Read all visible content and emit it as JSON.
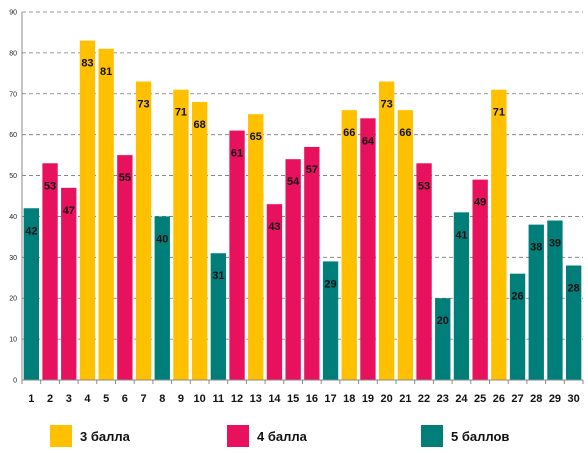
{
  "chart_data": {
    "type": "bar",
    "categories": [
      "1",
      "2",
      "3",
      "4",
      "5",
      "6",
      "7",
      "8",
      "9",
      "10",
      "11",
      "12",
      "13",
      "14",
      "15",
      "16",
      "17",
      "18",
      "19",
      "20",
      "21",
      "22",
      "23",
      "24",
      "25",
      "26",
      "27",
      "28",
      "29",
      "30"
    ],
    "values": [
      42,
      53,
      47,
      83,
      81,
      55,
      73,
      40,
      71,
      68,
      31,
      61,
      65,
      43,
      54,
      57,
      29,
      66,
      64,
      73,
      66,
      53,
      20,
      41,
      49,
      71,
      26,
      38,
      39,
      28
    ],
    "groups": [
      "5 баллов",
      "4 балла",
      "4 балла",
      "3 балла",
      "3 балла",
      "4 балла",
      "3 балла",
      "5 баллов",
      "3 балла",
      "3 балла",
      "5 баллов",
      "4 балла",
      "3 балла",
      "4 балла",
      "4 балла",
      "4 балла",
      "5 баллов",
      "3 балла",
      "4 балла",
      "3 балла",
      "3 балла",
      "4 балла",
      "5 баллов",
      "5 баллов",
      "4 балла",
      "3 балла",
      "5 баллов",
      "5 баллов",
      "5 баллов",
      "5 баллов"
    ],
    "yticks": [
      0,
      10,
      20,
      30,
      40,
      50,
      60,
      70,
      80,
      90
    ],
    "ylim": [
      0,
      90
    ],
    "grid": true,
    "legend_position": "bottom",
    "legend": [
      {
        "name": "3 балла",
        "color": "#FFC000"
      },
      {
        "name": "4 балла",
        "color": "#E8115E"
      },
      {
        "name": "5 баллов",
        "color": "#007E7A"
      }
    ]
  }
}
